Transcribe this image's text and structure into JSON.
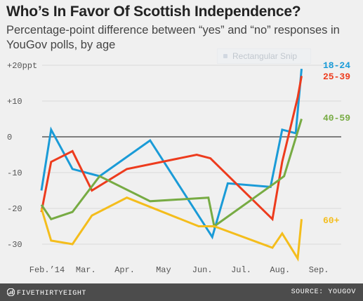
{
  "title": "Who’s In Favor Of Scottish Independence?",
  "subtitle": "Percentage-point difference between “yes” and “no” responses in YouGov polls, by age",
  "overlay": {
    "snip_label": "Rectangular Snip"
  },
  "footer": {
    "brand": "FIVETHIRTYEIGHT",
    "source": "SOURCE: YOUGOV",
    "logo_icon": "fivethirtyeight-logo-icon"
  },
  "chart_data": {
    "type": "line",
    "ylim": [
      -35,
      20
    ],
    "xlim": [
      0,
      7.25
    ],
    "y_ticks": [
      20,
      10,
      0,
      -10,
      -20,
      -30
    ],
    "y_tick_labels": [
      "+20ppt",
      "+10",
      "0",
      "-10",
      "-20",
      "-30"
    ],
    "x_ticks": [
      0,
      1,
      2,
      3,
      4,
      5,
      6,
      7
    ],
    "x_tick_labels": [
      "Feb.’14",
      "Mar.",
      "Apr.",
      "May",
      "Jun.",
      "Jul.",
      "Aug.",
      "Sep."
    ],
    "zero_line": true,
    "series": [
      {
        "name": "18-24",
        "color": "#1a9bd7",
        "x": [
          0.0,
          0.25,
          0.8,
          1.5,
          2.8,
          4.4,
          4.8,
          5.9,
          6.2,
          6.55,
          6.7
        ],
        "y": [
          -15,
          2,
          -9,
          -11,
          -1,
          -28,
          -13,
          -14,
          2,
          1,
          19
        ]
      },
      {
        "name": "25-39",
        "color": "#ed3b1d",
        "x": [
          0.0,
          0.25,
          0.8,
          1.3,
          2.2,
          4.0,
          4.35,
          5.95,
          6.2,
          6.6,
          6.7
        ],
        "y": [
          -21,
          -7,
          -4,
          -15,
          -9,
          -5,
          -6,
          -23,
          -7,
          11,
          17
        ]
      },
      {
        "name": "40-59",
        "color": "#77ab43",
        "x": [
          0.0,
          0.25,
          0.8,
          1.5,
          2.8,
          4.3,
          4.45,
          6.0,
          6.25,
          6.7
        ],
        "y": [
          -19,
          -23,
          -21,
          -11,
          -18,
          -17,
          -25,
          -13,
          -11,
          5
        ]
      },
      {
        "name": "60+",
        "color": "#f4bd1c",
        "x": [
          0.0,
          0.25,
          0.8,
          1.3,
          2.2,
          4.05,
          4.45,
          5.95,
          6.2,
          6.6,
          6.7
        ],
        "y": [
          -20,
          -29,
          -30,
          -22,
          -17,
          -25,
          -25,
          -31,
          -27,
          -34,
          -23
        ]
      }
    ]
  }
}
